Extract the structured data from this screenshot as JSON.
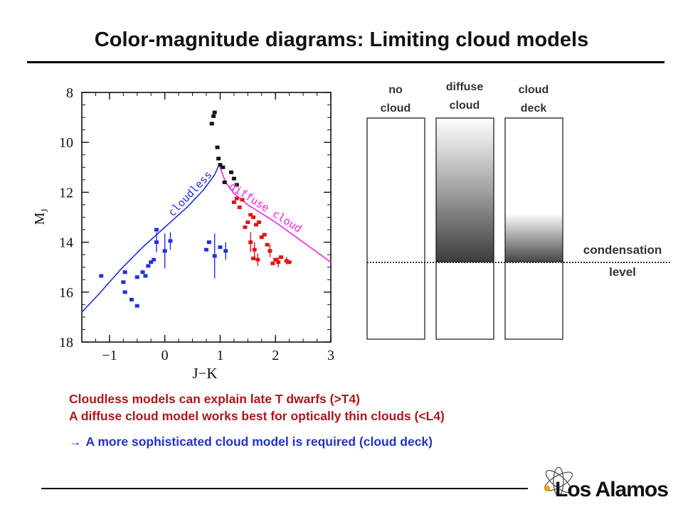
{
  "title": "Color-magnitude diagrams: Limiting cloud models",
  "chart_data": {
    "type": "scatter",
    "xlabel": "J−K",
    "ylabel": "M_J",
    "ylabel_main": "M",
    "ylabel_sub": "J",
    "xlim": [
      -1.5,
      3
    ],
    "ylim": [
      18,
      8
    ],
    "x_ticks": [
      -1,
      0,
      1,
      2,
      3
    ],
    "x_tick_labels": [
      "−1",
      "0",
      "1",
      "2",
      "3"
    ],
    "y_ticks": [
      8,
      10,
      12,
      14,
      16,
      18
    ],
    "y_tick_labels": [
      "8",
      "10",
      "12",
      "14",
      "16",
      "18"
    ],
    "curves": [
      {
        "label": "cloudless",
        "color": "#1f2fe0",
        "points": [
          [
            -1.5,
            16.8
          ],
          [
            -1.2,
            16.1
          ],
          [
            -0.8,
            15.1
          ],
          [
            -0.4,
            14.2
          ],
          [
            0.0,
            13.4
          ],
          [
            0.4,
            12.6
          ],
          [
            0.7,
            11.9
          ],
          [
            0.9,
            11.3
          ],
          [
            0.98,
            10.9
          ]
        ]
      },
      {
        "label": "diffuse cloud",
        "color": "#ee22e8",
        "points": [
          [
            0.98,
            10.9
          ],
          [
            1.1,
            11.6
          ],
          [
            1.25,
            12.05
          ],
          [
            1.5,
            12.5
          ],
          [
            2.0,
            13.2
          ],
          [
            2.5,
            14.0
          ],
          [
            3.0,
            14.8
          ]
        ]
      }
    ],
    "series": [
      {
        "color": "#111111",
        "points": [
          {
            "x": 0.85,
            "y": 9.25
          },
          {
            "x": 0.88,
            "y": 8.95
          },
          {
            "x": 0.9,
            "y": 8.8
          },
          {
            "x": 0.95,
            "y": 10.2
          },
          {
            "x": 0.97,
            "y": 10.65
          },
          {
            "x": 1.0,
            "y": 10.9
          },
          {
            "x": 1.05,
            "y": 11.0
          },
          {
            "x": 1.08,
            "y": 11.6
          },
          {
            "x": 1.2,
            "y": 11.2
          },
          {
            "x": 1.25,
            "y": 11.45
          },
          {
            "x": 1.3,
            "y": 11.7
          }
        ]
      },
      {
        "color": "#1f2fe0",
        "points": [
          {
            "x": -1.15,
            "y": 15.35
          },
          {
            "x": -0.72,
            "y": 15.2
          },
          {
            "x": -0.75,
            "y": 15.6
          },
          {
            "x": -0.72,
            "y": 16.0
          },
          {
            "x": -0.6,
            "y": 16.3
          },
          {
            "x": -0.5,
            "y": 16.55
          },
          {
            "x": -0.5,
            "y": 15.4
          },
          {
            "x": -0.4,
            "y": 15.2
          },
          {
            "x": -0.35,
            "y": 15.35
          },
          {
            "x": -0.3,
            "y": 14.95
          },
          {
            "x": -0.25,
            "y": 14.8
          },
          {
            "x": -0.2,
            "y": 14.7
          },
          {
            "x": -0.15,
            "y": 13.5
          },
          {
            "x": -0.15,
            "y": 14.0,
            "err": 0.4
          },
          {
            "x": 0.0,
            "y": 14.35,
            "err": 0.7
          },
          {
            "x": 0.1,
            "y": 13.95,
            "err": 0.35
          },
          {
            "x": 0.75,
            "y": 14.3
          },
          {
            "x": 0.8,
            "y": 14.0
          },
          {
            "x": 0.9,
            "y": 14.55,
            "err": 0.9
          },
          {
            "x": 1.0,
            "y": 14.2
          },
          {
            "x": 1.1,
            "y": 14.35,
            "err": 0.35
          }
        ]
      },
      {
        "color": "#e01515",
        "points": [
          {
            "x": 1.25,
            "y": 12.4
          },
          {
            "x": 1.3,
            "y": 12.25
          },
          {
            "x": 1.35,
            "y": 12.6
          },
          {
            "x": 1.4,
            "y": 12.3
          },
          {
            "x": 1.45,
            "y": 13.4
          },
          {
            "x": 1.5,
            "y": 13.2
          },
          {
            "x": 1.55,
            "y": 12.9
          },
          {
            "x": 1.6,
            "y": 13.0
          },
          {
            "x": 1.65,
            "y": 13.3
          },
          {
            "x": 1.7,
            "y": 13.2
          },
          {
            "x": 1.75,
            "y": 13.8
          },
          {
            "x": 1.8,
            "y": 13.7
          },
          {
            "x": 1.85,
            "y": 14.1
          },
          {
            "x": 1.55,
            "y": 14.0,
            "err": 0.4
          },
          {
            "x": 1.62,
            "y": 14.3,
            "err": 0.3
          },
          {
            "x": 1.68,
            "y": 14.7,
            "err": 0.25
          },
          {
            "x": 1.6,
            "y": 14.65
          },
          {
            "x": 1.9,
            "y": 14.35,
            "err": 0.25
          },
          {
            "x": 2.0,
            "y": 14.7
          },
          {
            "x": 2.05,
            "y": 14.8,
            "err": 0.2
          },
          {
            "x": 2.1,
            "y": 14.6
          },
          {
            "x": 2.2,
            "y": 14.75,
            "err": 0.15
          },
          {
            "x": 2.25,
            "y": 14.8
          },
          {
            "x": 1.95,
            "y": 14.85
          }
        ]
      }
    ]
  },
  "diagrams": {
    "columns": [
      {
        "label_line1": "no",
        "label_line2": "cloud"
      },
      {
        "label_line1": "diffuse",
        "label_line2": "cloud"
      },
      {
        "label_line1": "cloud",
        "label_line2": "deck"
      }
    ],
    "condensation_label_line1": "condensation",
    "condensation_label_line2": "level"
  },
  "bullets": [
    "Cloudless models can explain late T dwarfs (>T4)",
    "A diffuse cloud model works best for optically thin clouds (<L4)"
  ],
  "conclusion": {
    "arrow": "→",
    "text": "A more sophisticated cloud model is required (cloud deck)"
  },
  "logo": {
    "text": "Los Alamos"
  },
  "colors": {
    "title_text": "#111111",
    "bullet_red": "#b0161a",
    "bullet_blue": "#2233c9",
    "cloudless_curve": "#1f2fe0",
    "diffuse_curve": "#ee22e8"
  }
}
